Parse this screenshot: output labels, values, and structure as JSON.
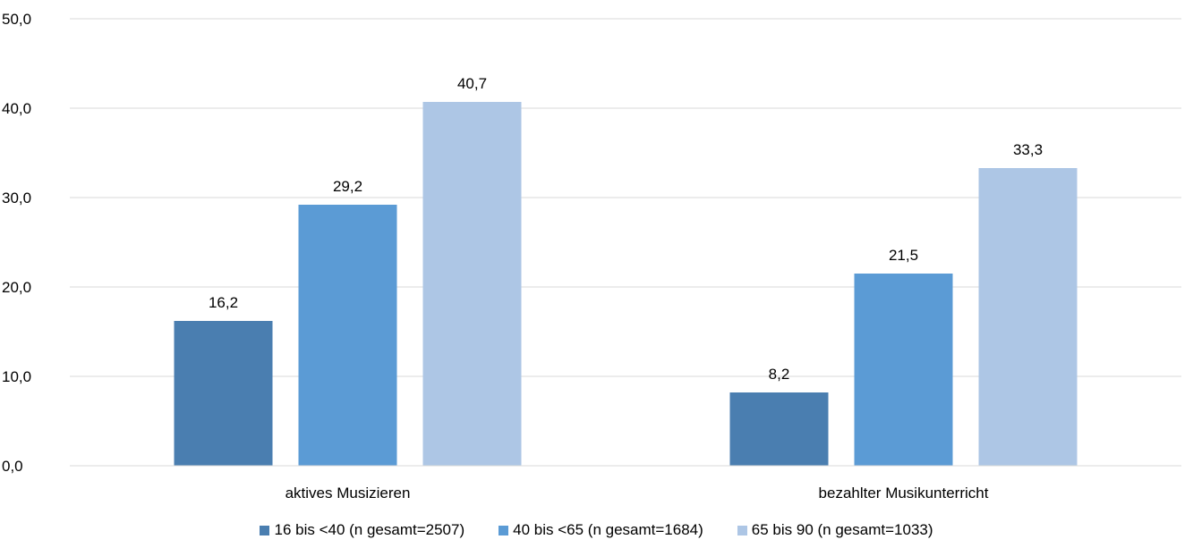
{
  "chart_data": {
    "type": "bar",
    "categories": [
      "aktives Musizieren",
      "bezahlter Musikunterricht"
    ],
    "series": [
      {
        "name": "16 bis <40 (n gesamt=2507)",
        "values": [
          16.2,
          8.2
        ],
        "labels": [
          "16,2",
          "8,2"
        ],
        "color": "#4a7eb0"
      },
      {
        "name": "40 bis <65 (n gesamt=1684)",
        "values": [
          29.2,
          21.5
        ],
        "labels": [
          "29,2",
          "21,5"
        ],
        "color": "#5b9bd5"
      },
      {
        "name": "65 bis 90 (n gesamt=1033)",
        "values": [
          40.7,
          33.3
        ],
        "labels": [
          "40,7",
          "33,3"
        ],
        "color": "#adc6e5"
      }
    ],
    "ylim": [
      0,
      50
    ],
    "yticks": [
      "0,0",
      "10,0",
      "20,0",
      "30,0",
      "40,0",
      "50,0"
    ],
    "grid": true,
    "legend_position": "bottom",
    "gridline_color": "#d9d9d9"
  }
}
